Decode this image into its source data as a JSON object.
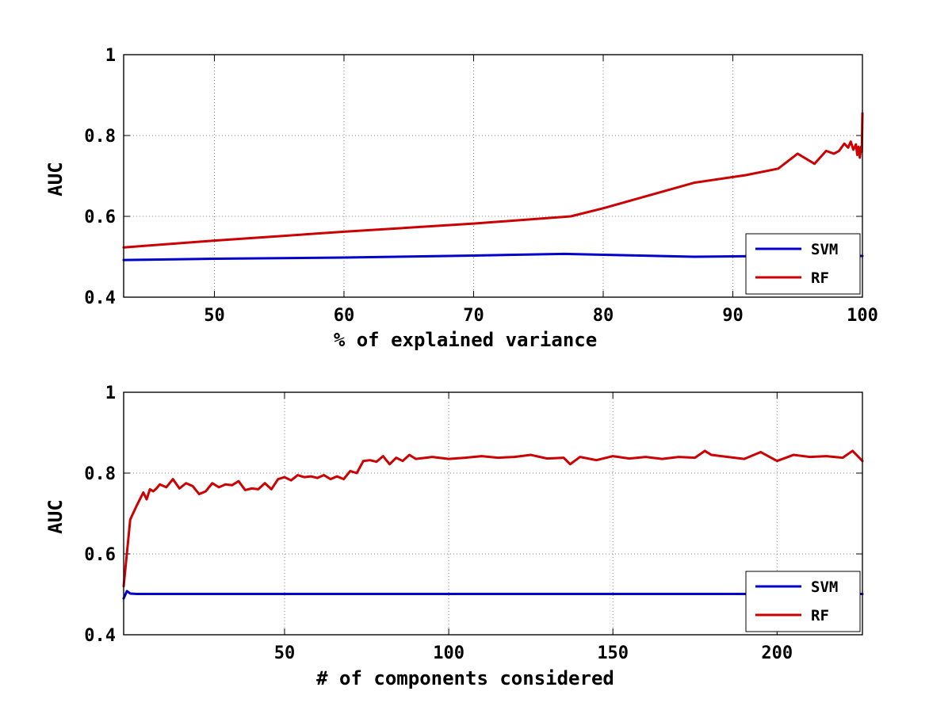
{
  "chart_data": [
    {
      "type": "line",
      "xlabel": "% of explained variance",
      "ylabel": "AUC",
      "xlim": [
        43,
        100
      ],
      "ylim": [
        0.4,
        1.0
      ],
      "xticks": [
        50,
        60,
        70,
        80,
        90,
        100
      ],
      "yticks": [
        0.4,
        0.6,
        0.8,
        1.0
      ],
      "ytick_labels": [
        "0.4",
        "0.6",
        "0.8",
        "1"
      ],
      "grid": true,
      "legend_position": "bottom-right",
      "series": [
        {
          "name": "SVM",
          "color": "#0000cc",
          "x": [
            43,
            50,
            60,
            70,
            77,
            80,
            87,
            93,
            97,
            99,
            100
          ],
          "y": [
            0.492,
            0.495,
            0.498,
            0.503,
            0.507,
            0.505,
            0.5,
            0.502,
            0.502,
            0.502,
            0.502
          ]
        },
        {
          "name": "RF",
          "color": "#cc0000",
          "x": [
            43,
            50,
            60,
            70,
            77.5,
            80,
            87,
            91,
            93.5,
            95,
            96.3,
            97.2,
            97.8,
            98.2,
            98.6,
            98.9,
            99.1,
            99.3,
            99.5,
            99.6,
            99.7,
            99.8,
            99.9,
            99.95,
            100
          ],
          "y": [
            0.523,
            0.54,
            0.562,
            0.582,
            0.6,
            0.62,
            0.683,
            0.702,
            0.718,
            0.755,
            0.73,
            0.762,
            0.755,
            0.762,
            0.78,
            0.77,
            0.785,
            0.765,
            0.778,
            0.752,
            0.772,
            0.745,
            0.772,
            0.76,
            0.855
          ]
        }
      ]
    },
    {
      "type": "line",
      "xlabel": "# of components considered",
      "ylabel": "AUC",
      "xlim": [
        1,
        226
      ],
      "ylim": [
        0.4,
        1.0
      ],
      "xticks": [
        50,
        100,
        150,
        200
      ],
      "yticks": [
        0.4,
        0.6,
        0.8,
        1.0
      ],
      "ytick_labels": [
        "0.4",
        "0.6",
        "0.8",
        "1"
      ],
      "grid": true,
      "legend_position": "bottom-right",
      "series": [
        {
          "name": "SVM",
          "color": "#0000cc",
          "x": [
            1,
            2,
            3,
            5,
            10,
            50,
            100,
            150,
            200,
            226
          ],
          "y": [
            0.49,
            0.508,
            0.502,
            0.501,
            0.501,
            0.501,
            0.501,
            0.501,
            0.501,
            0.501
          ]
        },
        {
          "name": "RF",
          "color": "#cc0000",
          "x": [
            1,
            3,
            5,
            7,
            8,
            9,
            10,
            11,
            12,
            14,
            16,
            18,
            20,
            22,
            24,
            26,
            28,
            30,
            32,
            34,
            36,
            38,
            40,
            42,
            44,
            46,
            48,
            50,
            52,
            54,
            56,
            58,
            60,
            62,
            64,
            66,
            68,
            70,
            72,
            74,
            76,
            78,
            80,
            82,
            84,
            86,
            88,
            90,
            95,
            100,
            105,
            110,
            115,
            120,
            125,
            130,
            135,
            137,
            140,
            145,
            150,
            155,
            160,
            165,
            170,
            175,
            178,
            180,
            185,
            190,
            195,
            200,
            205,
            210,
            215,
            220,
            223,
            226
          ],
          "y": [
            0.52,
            0.685,
            0.72,
            0.752,
            0.735,
            0.76,
            0.755,
            0.762,
            0.772,
            0.765,
            0.785,
            0.762,
            0.775,
            0.768,
            0.748,
            0.755,
            0.775,
            0.765,
            0.772,
            0.77,
            0.78,
            0.758,
            0.762,
            0.76,
            0.775,
            0.76,
            0.785,
            0.79,
            0.782,
            0.795,
            0.79,
            0.792,
            0.788,
            0.795,
            0.785,
            0.792,
            0.785,
            0.805,
            0.8,
            0.83,
            0.832,
            0.828,
            0.842,
            0.822,
            0.838,
            0.83,
            0.845,
            0.835,
            0.84,
            0.835,
            0.838,
            0.842,
            0.838,
            0.84,
            0.845,
            0.836,
            0.838,
            0.822,
            0.84,
            0.832,
            0.842,
            0.836,
            0.84,
            0.835,
            0.84,
            0.838,
            0.855,
            0.845,
            0.84,
            0.835,
            0.852,
            0.83,
            0.845,
            0.84,
            0.842,
            0.838,
            0.855,
            0.83
          ]
        }
      ]
    }
  ]
}
